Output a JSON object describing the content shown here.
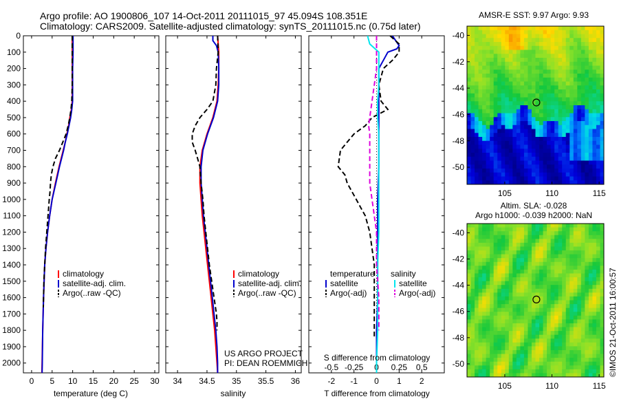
{
  "title": {
    "line1": "Argo profile: AO 1900806_107 14-Oct-2011 20111015_97 45.094S 108.351E",
    "line2": "Climatology: CARS2009. Satellite-adjusted climatology: synTS_20111015.nc (0.75d later)"
  },
  "credit": "©IMOS 21-Oct-2011 16:00:57",
  "project": {
    "line1": "US ARGO PROJECT",
    "line2": "PI: DEAN ROEMMICH"
  },
  "colors": {
    "climatology": "#ff0000",
    "satellite": "#0000cc",
    "argo": "#000000",
    "salinity_satellite": "#00e5ee",
    "salinity_argo": "#dd00dd"
  },
  "chart_data": [
    {
      "type": "line",
      "name": "temperature-profile",
      "xlabel": "temperature (deg C)",
      "ylabel": "",
      "xlim": [
        -2,
        31
      ],
      "ylim": [
        2060,
        0
      ],
      "xticks": [
        0,
        5,
        10,
        15,
        20,
        25,
        30
      ],
      "yticks": [
        0,
        100,
        200,
        300,
        400,
        500,
        600,
        700,
        800,
        900,
        1000,
        1100,
        1200,
        1300,
        1400,
        1500,
        1600,
        1700,
        1800,
        1900,
        2000
      ],
      "legend": [
        "climatology",
        "satellite-adj. clim.",
        "Argo(..raw -QC)"
      ],
      "legend_placement": "lower-right",
      "series": [
        {
          "name": "climatology",
          "style": "solid",
          "color": "#ff0000",
          "depth": [
            0,
            100,
            200,
            300,
            400,
            450,
            500,
            550,
            600,
            650,
            700,
            800,
            900,
            1000,
            1100,
            1200,
            1300,
            1400,
            1600,
            1800,
            2000,
            2060
          ],
          "values": [
            9.9,
            9.9,
            9.9,
            9.9,
            9.9,
            9.7,
            9.3,
            9.0,
            8.6,
            8.2,
            7.7,
            6.7,
            5.8,
            5.0,
            4.4,
            3.9,
            3.5,
            3.2,
            2.9,
            2.7,
            2.55,
            2.5
          ]
        },
        {
          "name": "satellite-adj. clim.",
          "style": "solid",
          "color": "#0000cc",
          "depth": [
            0,
            100,
            200,
            300,
            400,
            450,
            500,
            550,
            600,
            650,
            700,
            800,
            900,
            1000,
            1100,
            1200,
            1300,
            1400,
            1600,
            1800,
            2000,
            2060
          ],
          "values": [
            10.1,
            10.1,
            10.0,
            10.0,
            10.0,
            9.8,
            9.5,
            9.1,
            8.7,
            8.2,
            7.8,
            6.8,
            5.9,
            5.0,
            4.4,
            3.9,
            3.5,
            3.2,
            2.9,
            2.7,
            2.6,
            2.55
          ]
        },
        {
          "name": "Argo(..raw -QC)",
          "style": "dashed",
          "color": "#000000",
          "depth": [
            0,
            100,
            200,
            300,
            400,
            450,
            500,
            550,
            600,
            650,
            700,
            750,
            800,
            850,
            900,
            950,
            1000,
            1100,
            1200,
            1300,
            1400,
            1500,
            1600,
            1660
          ],
          "values": [
            9.9,
            9.9,
            9.9,
            9.9,
            9.8,
            9.6,
            9.3,
            8.9,
            8.4,
            7.6,
            6.8,
            5.8,
            5.2,
            4.8,
            4.6,
            4.5,
            4.3,
            4.0,
            3.7,
            3.4,
            3.2,
            3.0,
            2.9,
            2.85
          ]
        }
      ]
    },
    {
      "type": "line",
      "name": "salinity-profile",
      "xlabel": "salinity",
      "ylabel": "",
      "xlim": [
        33.8,
        36.1
      ],
      "ylim": [
        2060,
        0
      ],
      "xticks": [
        34,
        34.5,
        35,
        35.5,
        36
      ],
      "legend": [
        "climatology",
        "satellite-adj. clim.",
        "Argo(..raw -QC)"
      ],
      "legend_placement": "lower-right",
      "series": [
        {
          "name": "climatology",
          "style": "solid",
          "color": "#ff0000",
          "depth": [
            0,
            100,
            200,
            300,
            400,
            500,
            600,
            700,
            800,
            900,
            1000,
            1100,
            1200,
            1300,
            1400,
            1500,
            1600,
            1700,
            1800,
            1900,
            2000,
            2060
          ],
          "values": [
            34.68,
            34.7,
            34.7,
            34.69,
            34.67,
            34.6,
            34.5,
            34.42,
            34.38,
            34.38,
            34.4,
            34.42,
            34.45,
            34.48,
            34.51,
            34.54,
            34.57,
            34.6,
            34.63,
            34.65,
            34.67,
            34.68
          ]
        },
        {
          "name": "satellite-adj. clim.",
          "style": "solid",
          "color": "#0000cc",
          "depth": [
            0,
            30,
            60,
            100,
            200,
            300,
            400,
            500,
            600,
            700,
            800,
            900,
            1000,
            1100,
            1200,
            1300,
            1400,
            1500,
            1600,
            1700,
            1800,
            1900,
            2000,
            2060
          ],
          "values": [
            34.6,
            34.6,
            34.66,
            34.69,
            34.7,
            34.7,
            34.68,
            34.61,
            34.51,
            34.43,
            34.4,
            34.4,
            34.42,
            34.44,
            34.47,
            34.5,
            34.53,
            34.56,
            34.59,
            34.62,
            34.65,
            34.67,
            34.68,
            34.68
          ]
        },
        {
          "name": "Argo(..raw -QC)",
          "style": "dashed",
          "color": "#000000",
          "depth": [
            0,
            100,
            200,
            300,
            400,
            450,
            500,
            550,
            600,
            650,
            700,
            750,
            800,
            900,
            1000,
            1100,
            1200,
            1300,
            1400,
            1500,
            1600,
            1700,
            1750,
            1800
          ],
          "values": [
            34.68,
            34.69,
            34.66,
            34.65,
            34.6,
            34.5,
            34.38,
            34.3,
            34.25,
            34.25,
            34.3,
            34.34,
            34.38,
            34.4,
            34.43,
            34.45,
            34.48,
            34.51,
            34.54,
            34.58,
            34.62,
            34.66,
            34.67,
            34.67
          ]
        }
      ]
    },
    {
      "type": "line",
      "name": "difference-profile",
      "xlabel": "T difference from climatology",
      "xlabel_top": "S difference from climatology",
      "ylabel": "",
      "xlim": [
        -3,
        3
      ],
      "ylim": [
        2060,
        0
      ],
      "xticks_T": [
        -2,
        -1,
        0,
        1,
        2
      ],
      "xticks_S": [
        "-0.5",
        "-0.25",
        "0",
        "0.25",
        "0.5"
      ],
      "legend_headers": [
        "temperature",
        "salinity"
      ],
      "legend": [
        "satellite",
        "Argo(-adj)",
        "satellite",
        "Argo(-adj)"
      ],
      "legend_placement": "lower-center",
      "series": [
        {
          "name": "temperature satellite",
          "style": "solid",
          "color": "#0000cc",
          "depth": [
            0,
            40,
            60,
            80,
            100,
            150,
            200,
            300,
            400,
            500,
            600,
            800,
            1000,
            1200,
            1400,
            1600,
            1800,
            2000,
            2060
          ],
          "values": [
            0.7,
            0.9,
            1.0,
            0.9,
            0.5,
            0.3,
            0.1,
            0.1,
            0.1,
            0.1,
            0.1,
            0.1,
            0.05,
            0.05,
            0.05,
            0.05,
            0.0,
            0.0,
            0.0
          ]
        },
        {
          "name": "temperature Argo(-adj)",
          "style": "dashed",
          "color": "#000000",
          "depth": [
            0,
            50,
            100,
            150,
            200,
            300,
            400,
            450,
            500,
            550,
            600,
            700,
            800,
            850,
            900,
            1000,
            1050,
            1100,
            1200,
            1300,
            1400,
            1500,
            1600,
            1700,
            1800,
            1850
          ],
          "values": [
            0.6,
            1.0,
            1.0,
            0.7,
            0.3,
            0.1,
            0.2,
            0.5,
            -0.2,
            -0.5,
            -1.0,
            -1.6,
            -1.7,
            -1.4,
            -1.3,
            -0.9,
            -0.7,
            -0.5,
            -0.3,
            -0.2,
            -0.1,
            -0.1,
            -0.1,
            -0.1,
            -0.1,
            -0.1
          ]
        },
        {
          "name": "salinity satellite",
          "style": "solid",
          "color": "#00e5ee",
          "depth": [
            0,
            50,
            100,
            150,
            200,
            300,
            400,
            500,
            600,
            800,
            1000,
            1200,
            1400,
            1600,
            1800,
            2000,
            2060
          ],
          "values": [
            -0.4,
            -0.3,
            0.1,
            0.1,
            0.1,
            0.1,
            0.05,
            0.05,
            0.1,
            0.1,
            0.1,
            0.1,
            0.05,
            0.05,
            0.05,
            0.0,
            0.0
          ]
        },
        {
          "name": "salinity Argo(-adj)",
          "style": "dashed",
          "color": "#dd00dd",
          "depth": [
            0,
            100,
            200,
            300,
            400,
            500,
            550,
            600,
            700,
            800,
            900,
            1000,
            1100,
            1200,
            1400,
            1600,
            1800
          ],
          "values": [
            0.0,
            0.0,
            0.0,
            -0.1,
            -0.2,
            -0.3,
            -0.35,
            -0.3,
            -0.3,
            -0.3,
            -0.3,
            -0.2,
            -0.1,
            0.0,
            0.0,
            0.1,
            0.1
          ]
        }
      ]
    },
    {
      "type": "heatmap",
      "name": "sst-map",
      "title": "AMSR-E SST: 9.97 Argo: 9.93",
      "xlim": [
        101,
        115.5
      ],
      "ylim": [
        -51.3,
        -39.3
      ],
      "xticks": [
        105,
        110,
        115
      ],
      "yticks": [
        -40,
        -42,
        -44,
        -46,
        -48,
        -50
      ],
      "marker": {
        "lon": 108.35,
        "lat": -45.09
      }
    },
    {
      "type": "heatmap",
      "name": "sla-map",
      "title": "Altim. SLA: -0.028",
      "subtitle": "Argo h1000: -0.039 h2000: NaN",
      "xlim": [
        101,
        115.5
      ],
      "ylim": [
        -51,
        -39.3
      ],
      "xticks": [
        105,
        110,
        115
      ],
      "yticks": [
        -40,
        -42,
        -44,
        -46,
        -48,
        -50
      ],
      "marker": {
        "lon": 108.35,
        "lat": -45.09
      }
    }
  ]
}
